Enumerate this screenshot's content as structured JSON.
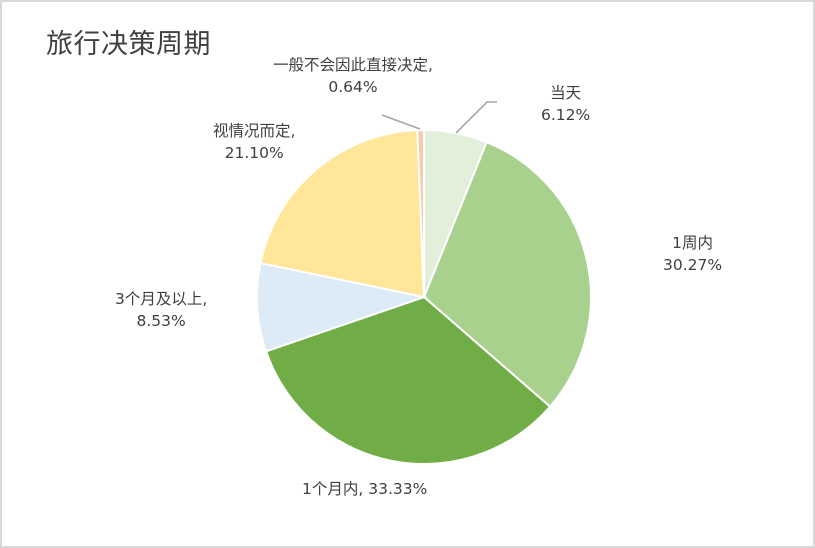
{
  "chart_data": {
    "type": "pie",
    "title": "旅行决策周期",
    "categories": [
      "当天",
      "1周内",
      "1个月内",
      "3个月及以上",
      "视情况而定",
      "一般不会因此直接决定"
    ],
    "values": [
      6.12,
      30.27,
      33.33,
      8.53,
      21.1,
      0.64
    ],
    "unit": "%",
    "colors": [
      "#e2efda",
      "#a9d18e",
      "#70ad47",
      "#ddebf7",
      "#ffe699",
      "#f8cbad"
    ],
    "start_angle": "12 o'clock",
    "direction": "clockwise",
    "legend": "none",
    "data_labels": [
      {
        "name": "当天",
        "value": "6.12%"
      },
      {
        "name": "1周内",
        "value": "30.27%"
      },
      {
        "name": "1个月内,",
        "value": "33.33%",
        "inline": "1个月内, 33.33%"
      },
      {
        "name": "3个月及以上,",
        "value": "8.53%"
      },
      {
        "name": "视情况而定,",
        "value": "21.10%"
      },
      {
        "name": "一般不会因此直接决定,",
        "value": "0.64%"
      }
    ]
  },
  "labels": {
    "today_name": "当天",
    "today_value": "6.12%",
    "week_name": "1周内",
    "week_value": "30.27%",
    "month_inline": "1个月内, 33.33%",
    "three_month_name": "3个月及以上,",
    "three_month_value": "8.53%",
    "depends_name": "视情况而定,",
    "depends_value": "21.10%",
    "never_name": "一般不会因此直接决定,",
    "never_value": "0.64%"
  }
}
